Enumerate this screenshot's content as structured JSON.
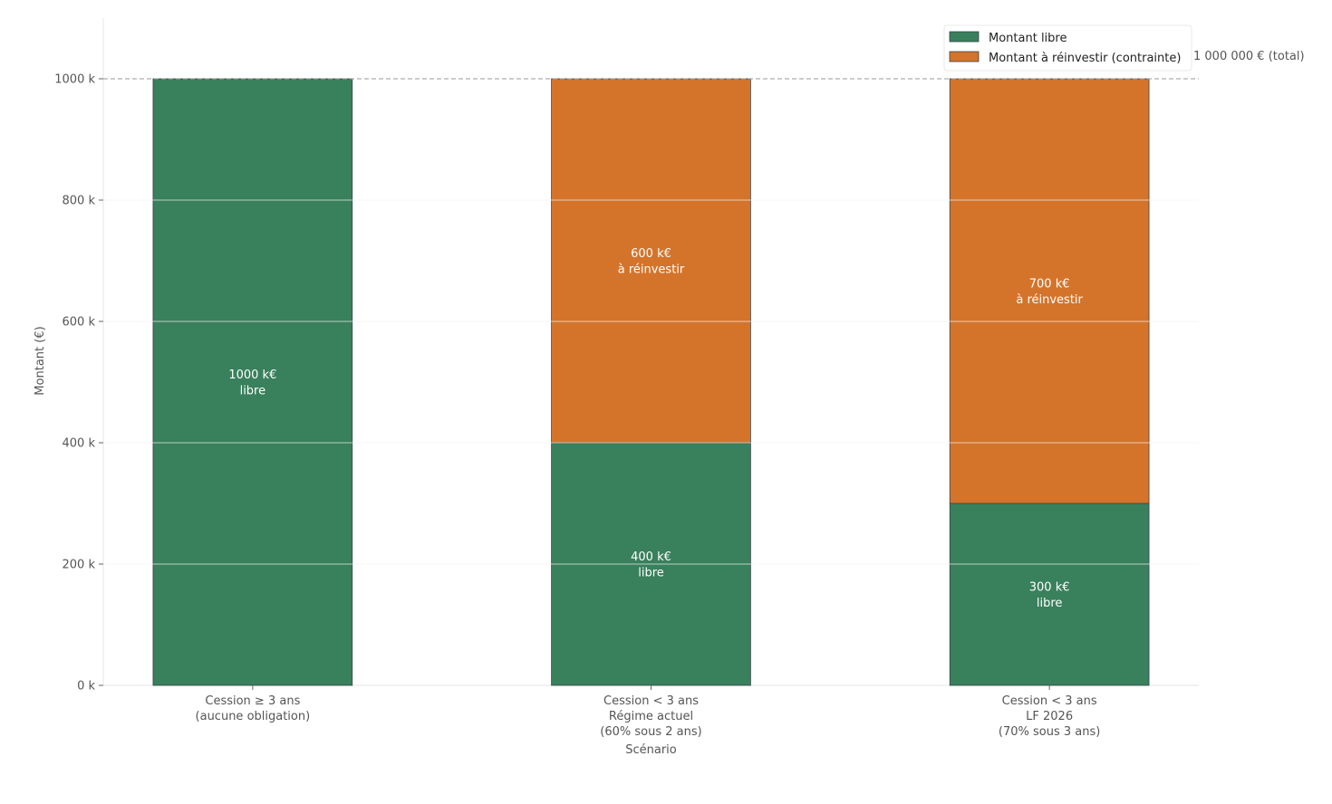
{
  "chart_data": {
    "type": "bar",
    "stacked": true,
    "categories": [
      [
        "Cession ≥ 3 ans",
        "(aucune obligation)"
      ],
      [
        "Cession < 3 ans",
        "Régime actuel",
        "(60% sous 2 ans)"
      ],
      [
        "Cession < 3 ans",
        "LF 2026",
        "(70% sous 3 ans)"
      ]
    ],
    "series": [
      {
        "name": "Montant libre",
        "color": "#39805c",
        "values": [
          1000000,
          400000,
          300000
        ],
        "labels": [
          [
            "1000 k€",
            "libre"
          ],
          [
            "400 k€",
            "libre"
          ],
          [
            "300 k€",
            "libre"
          ]
        ]
      },
      {
        "name": "Montant à réinvestir (contrainte)",
        "color": "#d4742b",
        "values": [
          0,
          600000,
          700000
        ],
        "labels": [
          null,
          [
            "600 k€",
            "à réinvestir"
          ],
          [
            "700 k€",
            "à réinvestir"
          ]
        ]
      }
    ],
    "xlabel": "Scénario",
    "ylabel": "Montant (€)",
    "ylim": [
      0,
      1100000
    ],
    "yticks": [
      0,
      200000,
      400000,
      600000,
      800000,
      1000000
    ],
    "ytick_labels": [
      "0 k",
      "200 k",
      "400 k",
      "600 k",
      "800 k",
      "1000 k"
    ],
    "reference_line": {
      "value": 1000000,
      "label": "1 000 000 € (total)",
      "style": "dashed"
    },
    "grid": "horizontal, faint",
    "legend_position": "top-right"
  }
}
